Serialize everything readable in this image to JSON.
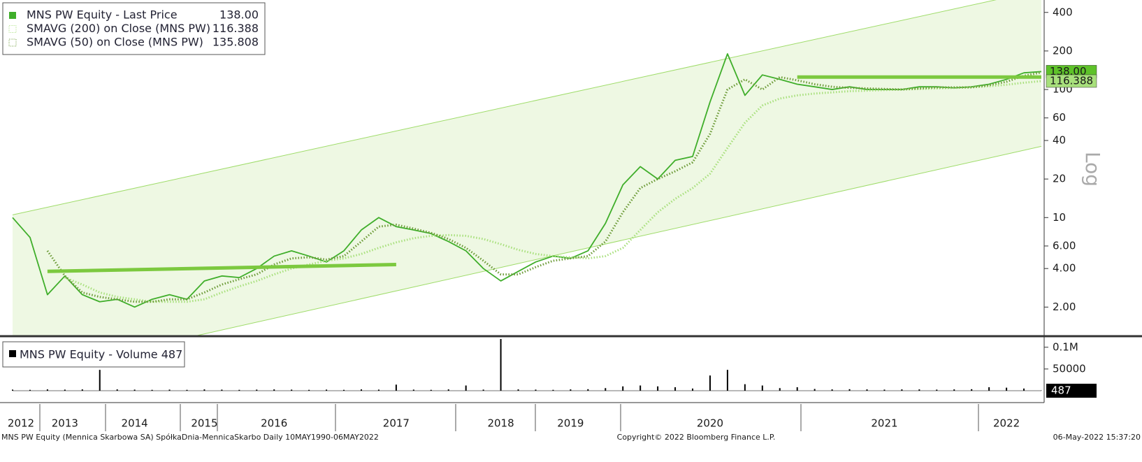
{
  "chart_data": [
    {
      "type": "line",
      "log_scale": true,
      "grid": false,
      "y_label": "Log",
      "categories": [
        "2012",
        null,
        null,
        "2013",
        null,
        null,
        null,
        "2014",
        null,
        null,
        null,
        "2015",
        null,
        null,
        null,
        "2016",
        null,
        null,
        null,
        null,
        null,
        null,
        "2017",
        null,
        null,
        null,
        null,
        null,
        "2018",
        null,
        null,
        null,
        "2019",
        null,
        null,
        null,
        null,
        null,
        null,
        null,
        "2020",
        null,
        null,
        null,
        null,
        null,
        null,
        null,
        null,
        null,
        "2021",
        null,
        null,
        null,
        null,
        null,
        null,
        "2022",
        null,
        null
      ],
      "series": [
        {
          "name": "MNS PW Equity - Last Price",
          "color": "#3fae2a",
          "style": "solid",
          "last_value_label": "138.00",
          "values": [
            10,
            7,
            2.5,
            3.5,
            2.5,
            2.2,
            2.3,
            2.0,
            2.3,
            2.5,
            2.3,
            3.2,
            3.5,
            3.4,
            4.0,
            5.0,
            5.5,
            5.0,
            4.5,
            5.5,
            8.0,
            10,
            8.5,
            8.0,
            7.5,
            6.5,
            5.5,
            4.0,
            3.2,
            3.8,
            4.5,
            5.0,
            4.8,
            5.5,
            9,
            18,
            25,
            20,
            28,
            30,
            80,
            190,
            90,
            130,
            120,
            110,
            105,
            100,
            105,
            100,
            100,
            100,
            105,
            105,
            103,
            105,
            110,
            120,
            135,
            138
          ]
        },
        {
          "name": "SMAVG (200)  on Close (MNS PW)",
          "color": "#a8e07c",
          "style": "dotted",
          "last_value_label": "116.388",
          "values": [
            null,
            null,
            null,
            3.4,
            3.0,
            2.6,
            2.4,
            2.3,
            2.2,
            2.2,
            2.2,
            2.3,
            2.6,
            2.9,
            3.2,
            3.6,
            4.0,
            4.3,
            4.6,
            4.8,
            5.2,
            5.8,
            6.4,
            6.9,
            7.2,
            7.3,
            7.2,
            6.8,
            6.2,
            5.6,
            5.2,
            5.0,
            4.9,
            4.8,
            5.0,
            5.8,
            8.0,
            11,
            14,
            17,
            22,
            35,
            55,
            75,
            85,
            90,
            93,
            95,
            97,
            98,
            99,
            100,
            101,
            102,
            103,
            104,
            106,
            109,
            113,
            116.388
          ]
        },
        {
          "name": "SMAVG (50)  on Close (MNS PW)",
          "color": "#6b9a36",
          "style": "dotted",
          "last_value_label": "135.808",
          "values": [
            null,
            null,
            5.5,
            3.5,
            2.6,
            2.4,
            2.3,
            2.2,
            2.2,
            2.3,
            2.3,
            2.6,
            3.0,
            3.3,
            3.6,
            4.3,
            4.8,
            4.9,
            4.7,
            5.0,
            6.5,
            8.5,
            8.8,
            8.2,
            7.6,
            6.8,
            5.8,
            4.6,
            3.6,
            3.6,
            4.1,
            4.6,
            4.8,
            5.0,
            6.5,
            11,
            17,
            20,
            23,
            27,
            45,
            100,
            120,
            100,
            125,
            118,
            110,
            105,
            103,
            102,
            101,
            100,
            102,
            104,
            104,
            104,
            108,
            115,
            128,
            135.808
          ]
        }
      ],
      "ylim": [
        1.2,
        500
      ],
      "yticks": [
        {
          "value": 2,
          "label": "2.00"
        },
        {
          "value": 4,
          "label": "4.00"
        },
        {
          "value": 6,
          "label": "6.00"
        },
        10,
        20,
        40,
        60,
        100,
        200,
        400
      ],
      "channel": {
        "color": "#9fdc6a",
        "fill": "#eef8e3",
        "upper": [
          10.5,
          600
        ],
        "lower": [
          0.57,
          36
        ]
      },
      "levels": [
        {
          "color": "#7cc93f",
          "from": 2,
          "to": 22,
          "values": [
            3.8,
            4.3
          ]
        },
        {
          "color": "#7cc93f",
          "from": 45,
          "to": 59,
          "values": [
            125,
            125
          ]
        }
      ]
    },
    {
      "type": "bar",
      "legend": "MNS PW Equity - Volume 487",
      "color": "#000000",
      "current": 487,
      "values": [
        2500,
        2000,
        3000,
        2500,
        3000,
        48000,
        3000,
        2500,
        2000,
        2500,
        2000,
        3000,
        2500,
        2000,
        2500,
        3000,
        2500,
        2000,
        2500,
        2000,
        3000,
        2500,
        14000,
        2500,
        2000,
        3000,
        12000,
        2500,
        119000,
        3000,
        2500,
        2000,
        3000,
        3500,
        6000,
        10000,
        12000,
        10000,
        8000,
        5000,
        35000,
        48000,
        15000,
        12000,
        6000,
        8000,
        4000,
        3000,
        3500,
        3000,
        2500,
        3000,
        3000,
        2500,
        3000,
        3500,
        8000,
        7000,
        5000,
        487
      ],
      "ylim": [
        0,
        119000
      ],
      "yticks": [
        {
          "value": 100000,
          "label": "0.1M"
        },
        50000
      ]
    }
  ],
  "footer": {
    "left": "MNS PW Equity (Mennica Skarbowa SA) SpółkaDnia-MennicaSkarbo  Daily 10MAY1990-06MAY2022",
    "center": "Copyright© 2022 Bloomberg Finance L.P.",
    "right": "06-May-2022 15:37:20"
  }
}
